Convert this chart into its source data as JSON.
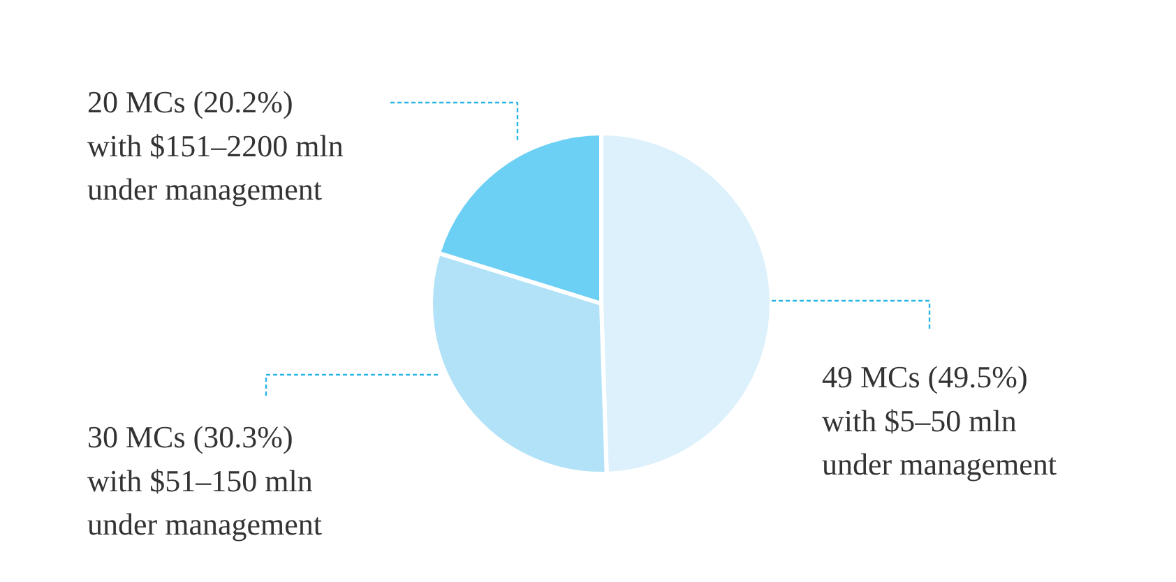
{
  "chart_data": {
    "type": "pie",
    "categories": [
      "49 MCs (49.5%)\nwith $5–50 mln\nunder management",
      "30 MCs (30.3%)\nwith $51–150 mln\nunder management",
      "20 MCs (20.2%)\nwith $151–2200 mln\nunder management"
    ],
    "values": [
      49,
      30,
      20
    ],
    "colors": [
      "#dcf1fb",
      "#b2e2f7",
      "#6ccff4"
    ]
  }
}
